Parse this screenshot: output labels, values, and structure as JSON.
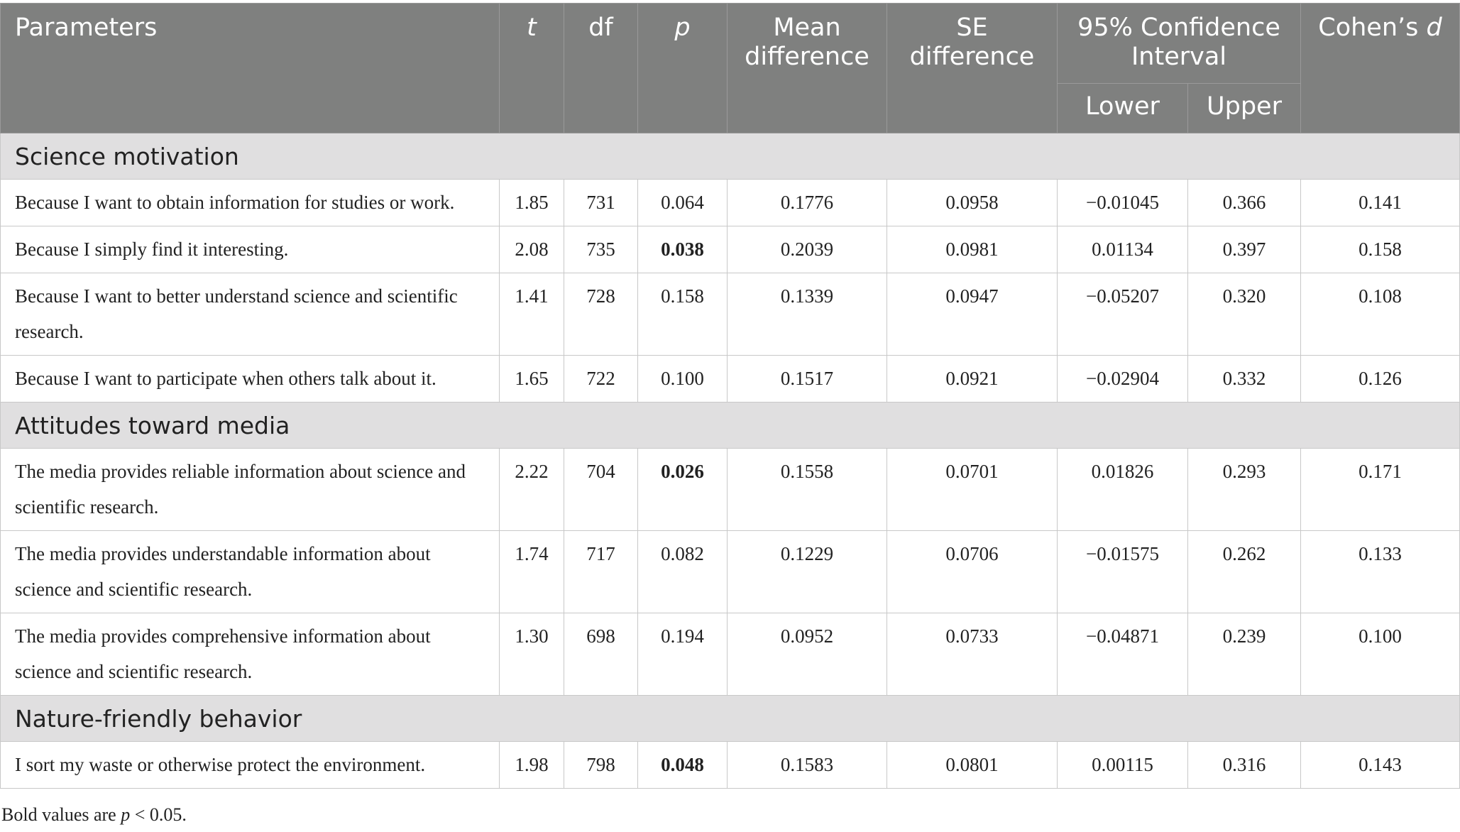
{
  "header": {
    "parameters": "Parameters",
    "t": "t",
    "df": "df",
    "p": "p",
    "mean_difference": "Mean difference",
    "se_difference": "SE difference",
    "ci": "95% Confidence Interval",
    "lower": "Lower",
    "upper": "Upper",
    "cohens_prefix": "Cohen’s ",
    "cohens_d": "d"
  },
  "sections": [
    {
      "title": "Science motivation",
      "rows": [
        {
          "label": "Because I want to obtain information for studies or work.",
          "t": "1.85",
          "df": "731",
          "p": "0.064",
          "mean": "0.1776",
          "se": "0.0958",
          "lower": "−0.01045",
          "upper": "0.366",
          "d": "0.141",
          "bold": false
        },
        {
          "label": "Because I simply find it interesting.",
          "t": "2.08",
          "df": "735",
          "p": "0.038",
          "mean": "0.2039",
          "se": "0.0981",
          "lower": "0.01134",
          "upper": "0.397",
          "d": "0.158",
          "bold": true
        },
        {
          "label": "Because I want to better understand science and scientific research.",
          "t": "1.41",
          "df": "728",
          "p": "0.158",
          "mean": "0.1339",
          "se": "0.0947",
          "lower": "−0.05207",
          "upper": "0.320",
          "d": "0.108",
          "bold": false
        },
        {
          "label": "Because I want to participate when others talk about it.",
          "t": "1.65",
          "df": "722",
          "p": "0.100",
          "mean": "0.1517",
          "se": "0.0921",
          "lower": "−0.02904",
          "upper": "0.332",
          "d": "0.126",
          "bold": false
        }
      ]
    },
    {
      "title": "Attitudes toward media",
      "rows": [
        {
          "label": "The media provides reliable information about science and scientific research.",
          "t": "2.22",
          "df": "704",
          "p": "0.026",
          "mean": "0.1558",
          "se": "0.0701",
          "lower": "0.01826",
          "upper": "0.293",
          "d": "0.171",
          "bold": true
        },
        {
          "label": "The media provides understandable information about science and scientific research.",
          "t": "1.74",
          "df": "717",
          "p": "0.082",
          "mean": "0.1229",
          "se": "0.0706",
          "lower": "−0.01575",
          "upper": "0.262",
          "d": "0.133",
          "bold": false
        },
        {
          "label": "The media provides comprehensive information about science and scientific research.",
          "t": "1.30",
          "df": "698",
          "p": "0.194",
          "mean": "0.0952",
          "se": "0.0733",
          "lower": "−0.04871",
          "upper": "0.239",
          "d": "0.100",
          "bold": false
        }
      ]
    },
    {
      "title": "Nature-friendly behavior",
      "rows": [
        {
          "label": "I sort my waste or otherwise protect the environment.",
          "t": "1.98",
          "df": "798",
          "p": "0.048",
          "mean": "0.1583",
          "se": "0.0801",
          "lower": "0.00115",
          "upper": "0.316",
          "d": "0.143",
          "bold": true
        }
      ]
    }
  ],
  "note": {
    "prefix": "Bold values are ",
    "p": "p",
    "suffix": " < 0.05."
  }
}
